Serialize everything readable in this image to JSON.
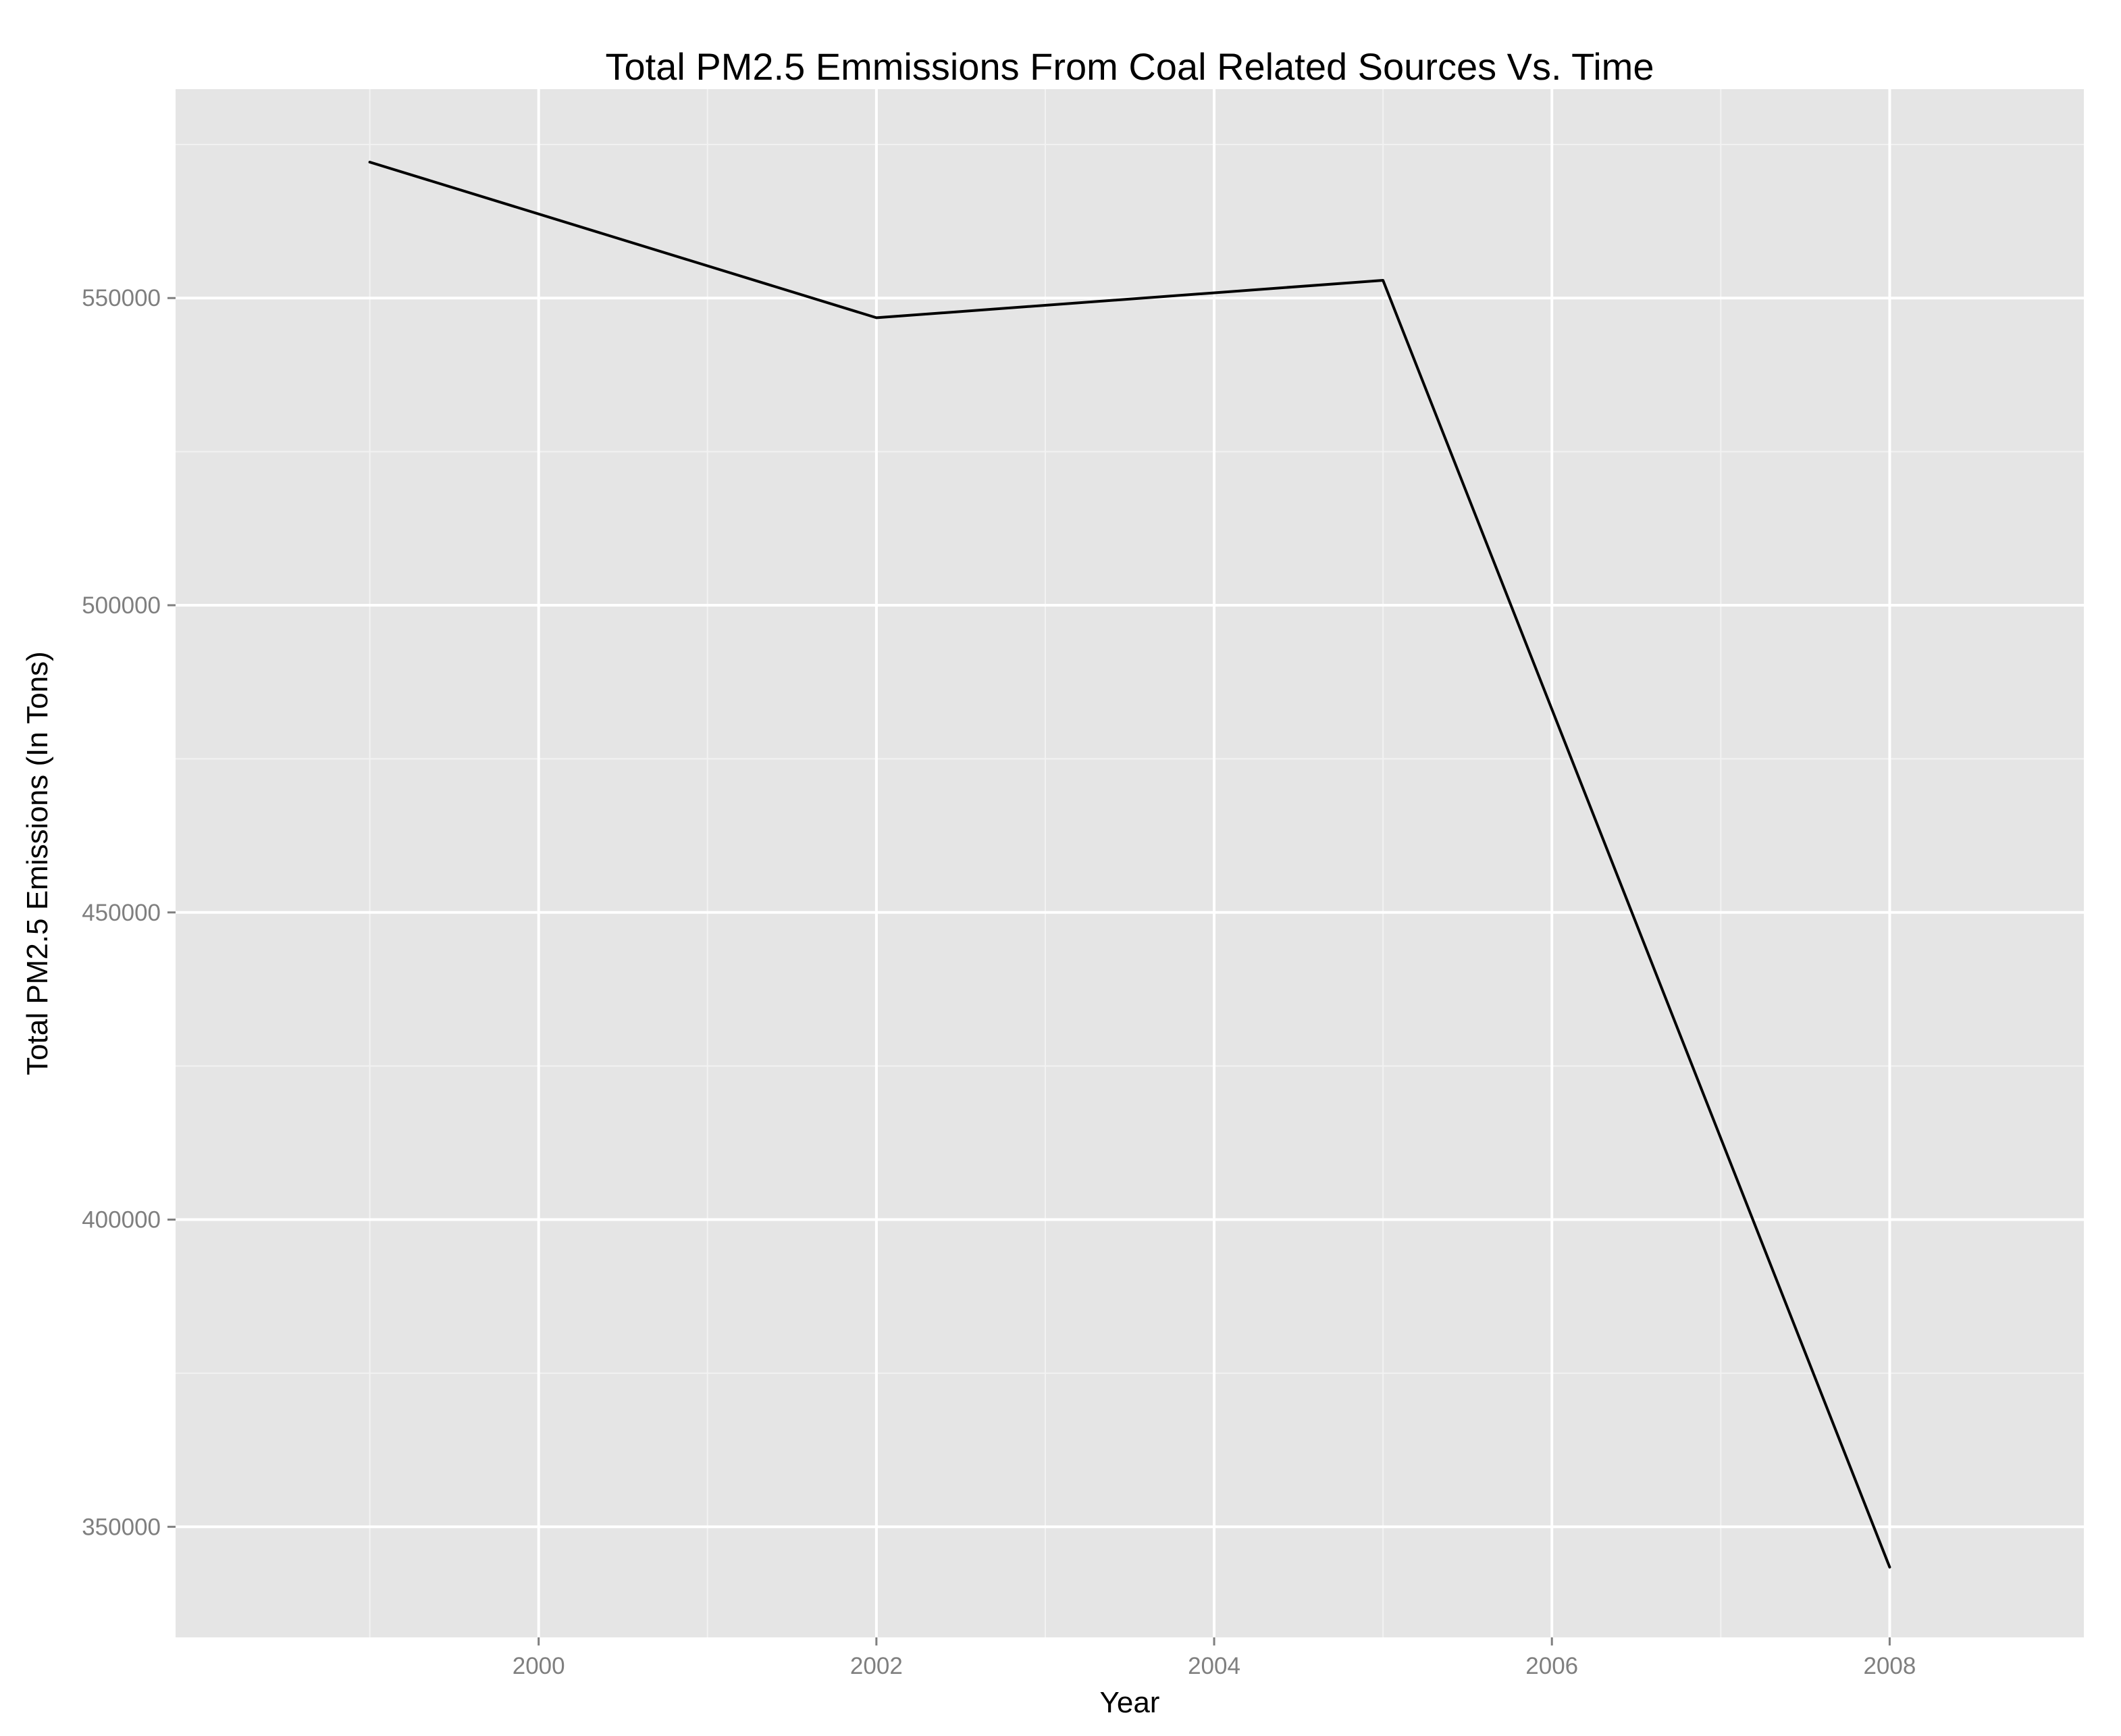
{
  "chart_data": {
    "type": "line",
    "title": "Total PM2.5 Emmissions From Coal Related Sources Vs. Time",
    "xlabel": "Year",
    "ylabel": "Total PM2.5 Emissions (In Tons)",
    "x": [
      1999,
      2002,
      2005,
      2008
    ],
    "series": [
      {
        "values": [
          572126.1,
          546789.2,
          552881.5,
          343432.2
        ]
      }
    ],
    "xlim": [
      1997.85,
      2009.15
    ],
    "ylim": [
      332000,
      584000
    ],
    "x_ticks": [
      2000,
      2002,
      2004,
      2006,
      2008
    ],
    "x_tick_labels": [
      "2000",
      "2002",
      "2004",
      "2006",
      "2008"
    ],
    "x_minor_ticks": [
      1999,
      2001,
      2003,
      2005,
      2007
    ],
    "y_ticks": [
      350000,
      400000,
      450000,
      500000,
      550000
    ],
    "y_tick_labels": [
      "350000",
      "400000",
      "450000",
      "500000",
      "550000"
    ],
    "y_minor_ticks": [
      375000,
      425000,
      475000,
      525000,
      575000
    ],
    "grid": true,
    "legend": "none",
    "colors": {
      "panel_background": "#e5e5e5",
      "grid_major": "#ffffff",
      "grid_minor": "#f2f2f2",
      "line": "#000000",
      "tick_label": "#7f7f7f",
      "title": "#000000"
    }
  }
}
